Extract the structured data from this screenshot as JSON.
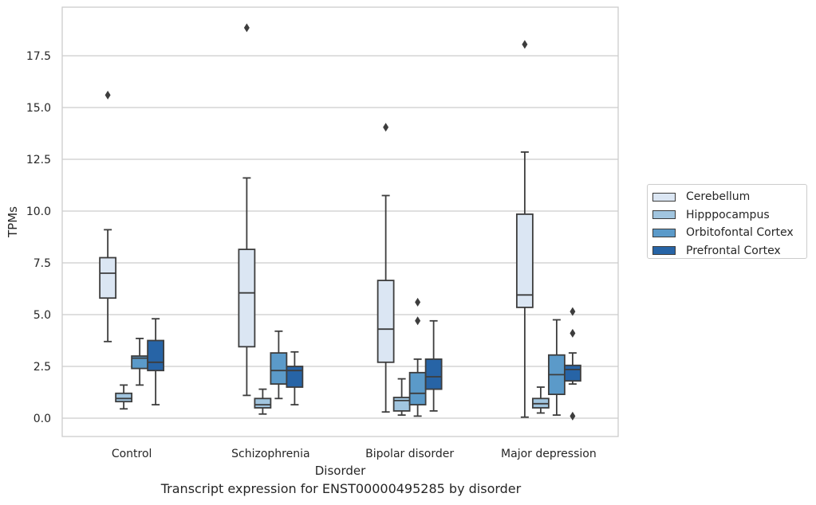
{
  "chart_data": {
    "type": "box",
    "title": "",
    "caption": "Transcript expression for ENST00000495285 by disorder",
    "xlabel": "Disorder",
    "ylabel": "TPMs",
    "ylim": [
      -0.9,
      19.8
    ],
    "yticks": [
      "0.0",
      "2.5",
      "5.0",
      "7.5",
      "10.0",
      "12.5",
      "15.0",
      "17.5"
    ],
    "ytick_values": [
      0,
      2.5,
      5,
      7.5,
      10,
      12.5,
      15,
      17.5
    ],
    "grid": "horizontal",
    "legend_position": "right, outside",
    "categories": [
      "Control",
      "Schizophrenia",
      "Bipolar disorder",
      "Major depression"
    ],
    "series": [
      {
        "name": "Cerebellum",
        "color": "#dbe6f3",
        "boxes": [
          {
            "whislo": 3.7,
            "q1": 5.8,
            "med": 7.0,
            "q3": 7.75,
            "whishi": 9.1,
            "fliers": [
              15.6
            ]
          },
          {
            "whislo": 1.1,
            "q1": 3.45,
            "med": 6.05,
            "q3": 8.15,
            "whishi": 11.6,
            "fliers": [
              18.85
            ]
          },
          {
            "whislo": 0.3,
            "q1": 2.7,
            "med": 4.3,
            "q3": 6.65,
            "whishi": 10.75,
            "fliers": [
              14.05
            ]
          },
          {
            "whislo": 0.05,
            "q1": 5.35,
            "med": 5.95,
            "q3": 9.85,
            "whishi": 12.85,
            "fliers": [
              18.05
            ]
          }
        ]
      },
      {
        "name": "Hipppocampus",
        "color": "#a1c5df",
        "boxes": [
          {
            "whislo": 0.45,
            "q1": 0.8,
            "med": 0.95,
            "q3": 1.2,
            "whishi": 1.6,
            "fliers": []
          },
          {
            "whislo": 0.2,
            "q1": 0.5,
            "med": 0.65,
            "q3": 0.95,
            "whishi": 1.4,
            "fliers": []
          },
          {
            "whislo": 0.15,
            "q1": 0.35,
            "med": 0.85,
            "q3": 1.0,
            "whishi": 1.9,
            "fliers": []
          },
          {
            "whislo": 0.25,
            "q1": 0.5,
            "med": 0.7,
            "q3": 0.95,
            "whishi": 1.5,
            "fliers": []
          }
        ]
      },
      {
        "name": "Orbitofontal Cortex",
        "color": "#5b9ac9",
        "boxes": [
          {
            "whislo": 1.6,
            "q1": 2.4,
            "med": 2.9,
            "q3": 3.0,
            "whishi": 3.85,
            "fliers": []
          },
          {
            "whislo": 0.95,
            "q1": 1.65,
            "med": 2.3,
            "q3": 3.15,
            "whishi": 4.2,
            "fliers": []
          },
          {
            "whislo": 0.1,
            "q1": 0.65,
            "med": 1.2,
            "q3": 2.2,
            "whishi": 2.85,
            "fliers": [
              4.7,
              5.6
            ]
          },
          {
            "whislo": 0.15,
            "q1": 1.15,
            "med": 2.1,
            "q3": 3.05,
            "whishi": 4.75,
            "fliers": []
          }
        ]
      },
      {
        "name": "Prefrontal Cortex",
        "color": "#2764a6",
        "boxes": [
          {
            "whislo": 0.65,
            "q1": 2.3,
            "med": 2.7,
            "q3": 3.75,
            "whishi": 4.8,
            "fliers": []
          },
          {
            "whislo": 0.65,
            "q1": 1.5,
            "med": 2.3,
            "q3": 2.5,
            "whishi": 3.2,
            "fliers": []
          },
          {
            "whislo": 0.35,
            "q1": 1.4,
            "med": 2.0,
            "q3": 2.85,
            "whishi": 4.7,
            "fliers": []
          },
          {
            "whislo": 1.65,
            "q1": 1.8,
            "med": 2.35,
            "q3": 2.55,
            "whishi": 3.15,
            "fliers": [
              0.1,
              4.1,
              5.15
            ]
          }
        ]
      }
    ]
  }
}
